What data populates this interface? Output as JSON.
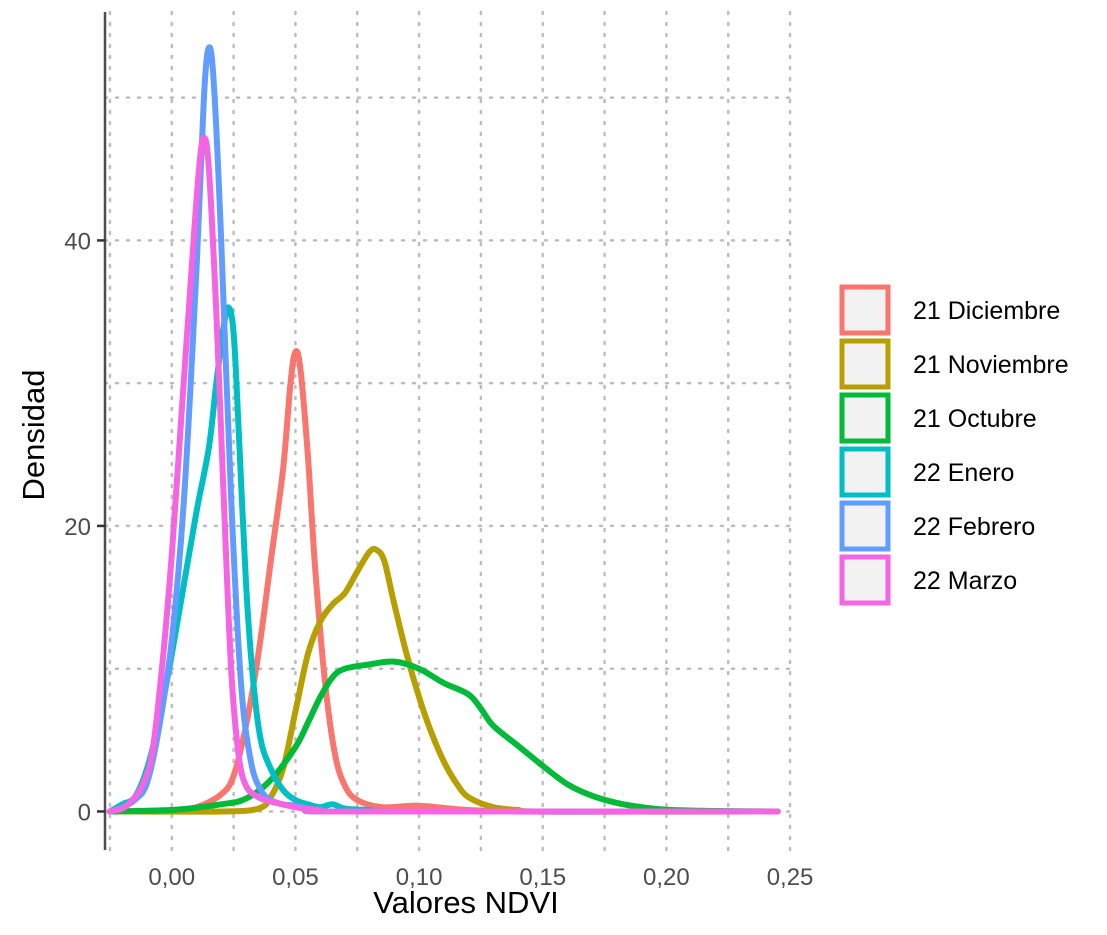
{
  "chart_data": {
    "type": "line",
    "xlabel": "Valores NDVI",
    "ylabel": "Densidad",
    "xlim": [
      -0.027,
      0.252
    ],
    "ylim": [
      -2.7,
      56
    ],
    "x_ticks": [
      0,
      0.05,
      0.1,
      0.15,
      0.2,
      0.25
    ],
    "x_tick_labels": [
      "0,00",
      "0,05",
      "0,10",
      "0,15",
      "0,20",
      "0,25"
    ],
    "y_ticks": [
      0,
      20,
      40
    ],
    "y_tick_labels": [
      "0",
      "20",
      "40"
    ],
    "grid": true,
    "legend_position": "right",
    "series": [
      {
        "name": "21 Diciembre",
        "color": "#F8766D",
        "points": [
          [
            -0.025,
            0
          ],
          [
            0.0,
            0.1
          ],
          [
            0.01,
            0.3
          ],
          [
            0.02,
            1.2
          ],
          [
            0.025,
            2.5
          ],
          [
            0.03,
            6
          ],
          [
            0.035,
            11
          ],
          [
            0.04,
            17.5
          ],
          [
            0.045,
            24
          ],
          [
            0.048,
            30
          ],
          [
            0.05,
            32.2
          ],
          [
            0.052,
            31
          ],
          [
            0.055,
            25
          ],
          [
            0.058,
            17
          ],
          [
            0.062,
            9
          ],
          [
            0.066,
            4
          ],
          [
            0.07,
            1.8
          ],
          [
            0.075,
            0.8
          ],
          [
            0.085,
            0.3
          ],
          [
            0.1,
            0.4
          ],
          [
            0.12,
            0.1
          ],
          [
            0.15,
            0
          ],
          [
            0.245,
            0
          ]
        ]
      },
      {
        "name": "21 Noviembre",
        "color": "#B79F00",
        "points": [
          [
            -0.025,
            0
          ],
          [
            0.02,
            0
          ],
          [
            0.035,
            0.2
          ],
          [
            0.04,
            1
          ],
          [
            0.045,
            3
          ],
          [
            0.05,
            7
          ],
          [
            0.055,
            11
          ],
          [
            0.06,
            13.3
          ],
          [
            0.065,
            14.5
          ],
          [
            0.07,
            15.3
          ],
          [
            0.075,
            16.8
          ],
          [
            0.08,
            18.2
          ],
          [
            0.083,
            18.3
          ],
          [
            0.086,
            17.5
          ],
          [
            0.09,
            14.5
          ],
          [
            0.095,
            11
          ],
          [
            0.1,
            8
          ],
          [
            0.105,
            5.5
          ],
          [
            0.11,
            3.5
          ],
          [
            0.115,
            2
          ],
          [
            0.12,
            1
          ],
          [
            0.13,
            0.3
          ],
          [
            0.14,
            0.1
          ],
          [
            0.15,
            0
          ],
          [
            0.245,
            0
          ]
        ]
      },
      {
        "name": "21 Octubre",
        "color": "#00BA38",
        "points": [
          [
            -0.025,
            0
          ],
          [
            0,
            0.1
          ],
          [
            0.02,
            0.5
          ],
          [
            0.03,
            0.9
          ],
          [
            0.04,
            2.2
          ],
          [
            0.05,
            4.5
          ],
          [
            0.055,
            6.2
          ],
          [
            0.06,
            8
          ],
          [
            0.065,
            9.4
          ],
          [
            0.07,
            10
          ],
          [
            0.08,
            10.3
          ],
          [
            0.09,
            10.5
          ],
          [
            0.1,
            10
          ],
          [
            0.11,
            9
          ],
          [
            0.12,
            8.2
          ],
          [
            0.125,
            7.2
          ],
          [
            0.13,
            6
          ],
          [
            0.14,
            4.6
          ],
          [
            0.15,
            3.2
          ],
          [
            0.16,
            1.9
          ],
          [
            0.17,
            1.1
          ],
          [
            0.18,
            0.6
          ],
          [
            0.19,
            0.3
          ],
          [
            0.2,
            0.12
          ],
          [
            0.22,
            0.03
          ],
          [
            0.245,
            0
          ]
        ]
      },
      {
        "name": "22 Enero",
        "color": "#00BFC4",
        "points": [
          [
            -0.025,
            0
          ],
          [
            -0.02,
            0.5
          ],
          [
            -0.015,
            1
          ],
          [
            -0.01,
            3
          ],
          [
            -0.005,
            6.5
          ],
          [
            0,
            11
          ],
          [
            0.005,
            16
          ],
          [
            0.01,
            21
          ],
          [
            0.015,
            25.5
          ],
          [
            0.018,
            30
          ],
          [
            0.021,
            34
          ],
          [
            0.023,
            35.3
          ],
          [
            0.025,
            33.5
          ],
          [
            0.027,
            27
          ],
          [
            0.03,
            16
          ],
          [
            0.033,
            9
          ],
          [
            0.036,
            5
          ],
          [
            0.04,
            3
          ],
          [
            0.045,
            1.5
          ],
          [
            0.05,
            0.8
          ],
          [
            0.055,
            0.5
          ],
          [
            0.06,
            0.3
          ],
          [
            0.065,
            0.5
          ],
          [
            0.07,
            0.2
          ],
          [
            0.08,
            0.1
          ],
          [
            0.09,
            0
          ],
          [
            0.245,
            0
          ]
        ]
      },
      {
        "name": "22 Febrero",
        "color": "#619CFF",
        "points": [
          [
            -0.025,
            0
          ],
          [
            -0.02,
            0.3
          ],
          [
            -0.015,
            0.8
          ],
          [
            -0.01,
            2
          ],
          [
            -0.005,
            6
          ],
          [
            0,
            12
          ],
          [
            0.005,
            22
          ],
          [
            0.01,
            38
          ],
          [
            0.013,
            50
          ],
          [
            0.015,
            53.5
          ],
          [
            0.017,
            51
          ],
          [
            0.02,
            40
          ],
          [
            0.024,
            22
          ],
          [
            0.028,
            9
          ],
          [
            0.032,
            3.5
          ],
          [
            0.036,
            1.5
          ],
          [
            0.04,
            0.8
          ],
          [
            0.045,
            0.5
          ],
          [
            0.05,
            0.4
          ],
          [
            0.055,
            0.2
          ],
          [
            0.06,
            0.1
          ],
          [
            0.07,
            0
          ],
          [
            0.245,
            0
          ]
        ]
      },
      {
        "name": "22 Marzo",
        "color": "#F564E3",
        "points": [
          [
            -0.025,
            0
          ],
          [
            -0.02,
            0.2
          ],
          [
            -0.017,
            0.6
          ],
          [
            -0.014,
            1.2
          ],
          [
            -0.012,
            1.8
          ],
          [
            -0.008,
            4
          ],
          [
            -0.004,
            10
          ],
          [
            0,
            18
          ],
          [
            0.004,
            28
          ],
          [
            0.008,
            38
          ],
          [
            0.011,
            45
          ],
          [
            0.013,
            47.2
          ],
          [
            0.015,
            45
          ],
          [
            0.018,
            35
          ],
          [
            0.021,
            22
          ],
          [
            0.024,
            10
          ],
          [
            0.027,
            4
          ],
          [
            0.03,
            1.8
          ],
          [
            0.035,
            1
          ],
          [
            0.04,
            0.7
          ],
          [
            0.05,
            0.3
          ],
          [
            0.06,
            0.1
          ],
          [
            0.07,
            0
          ],
          [
            0.245,
            0
          ]
        ]
      }
    ]
  }
}
